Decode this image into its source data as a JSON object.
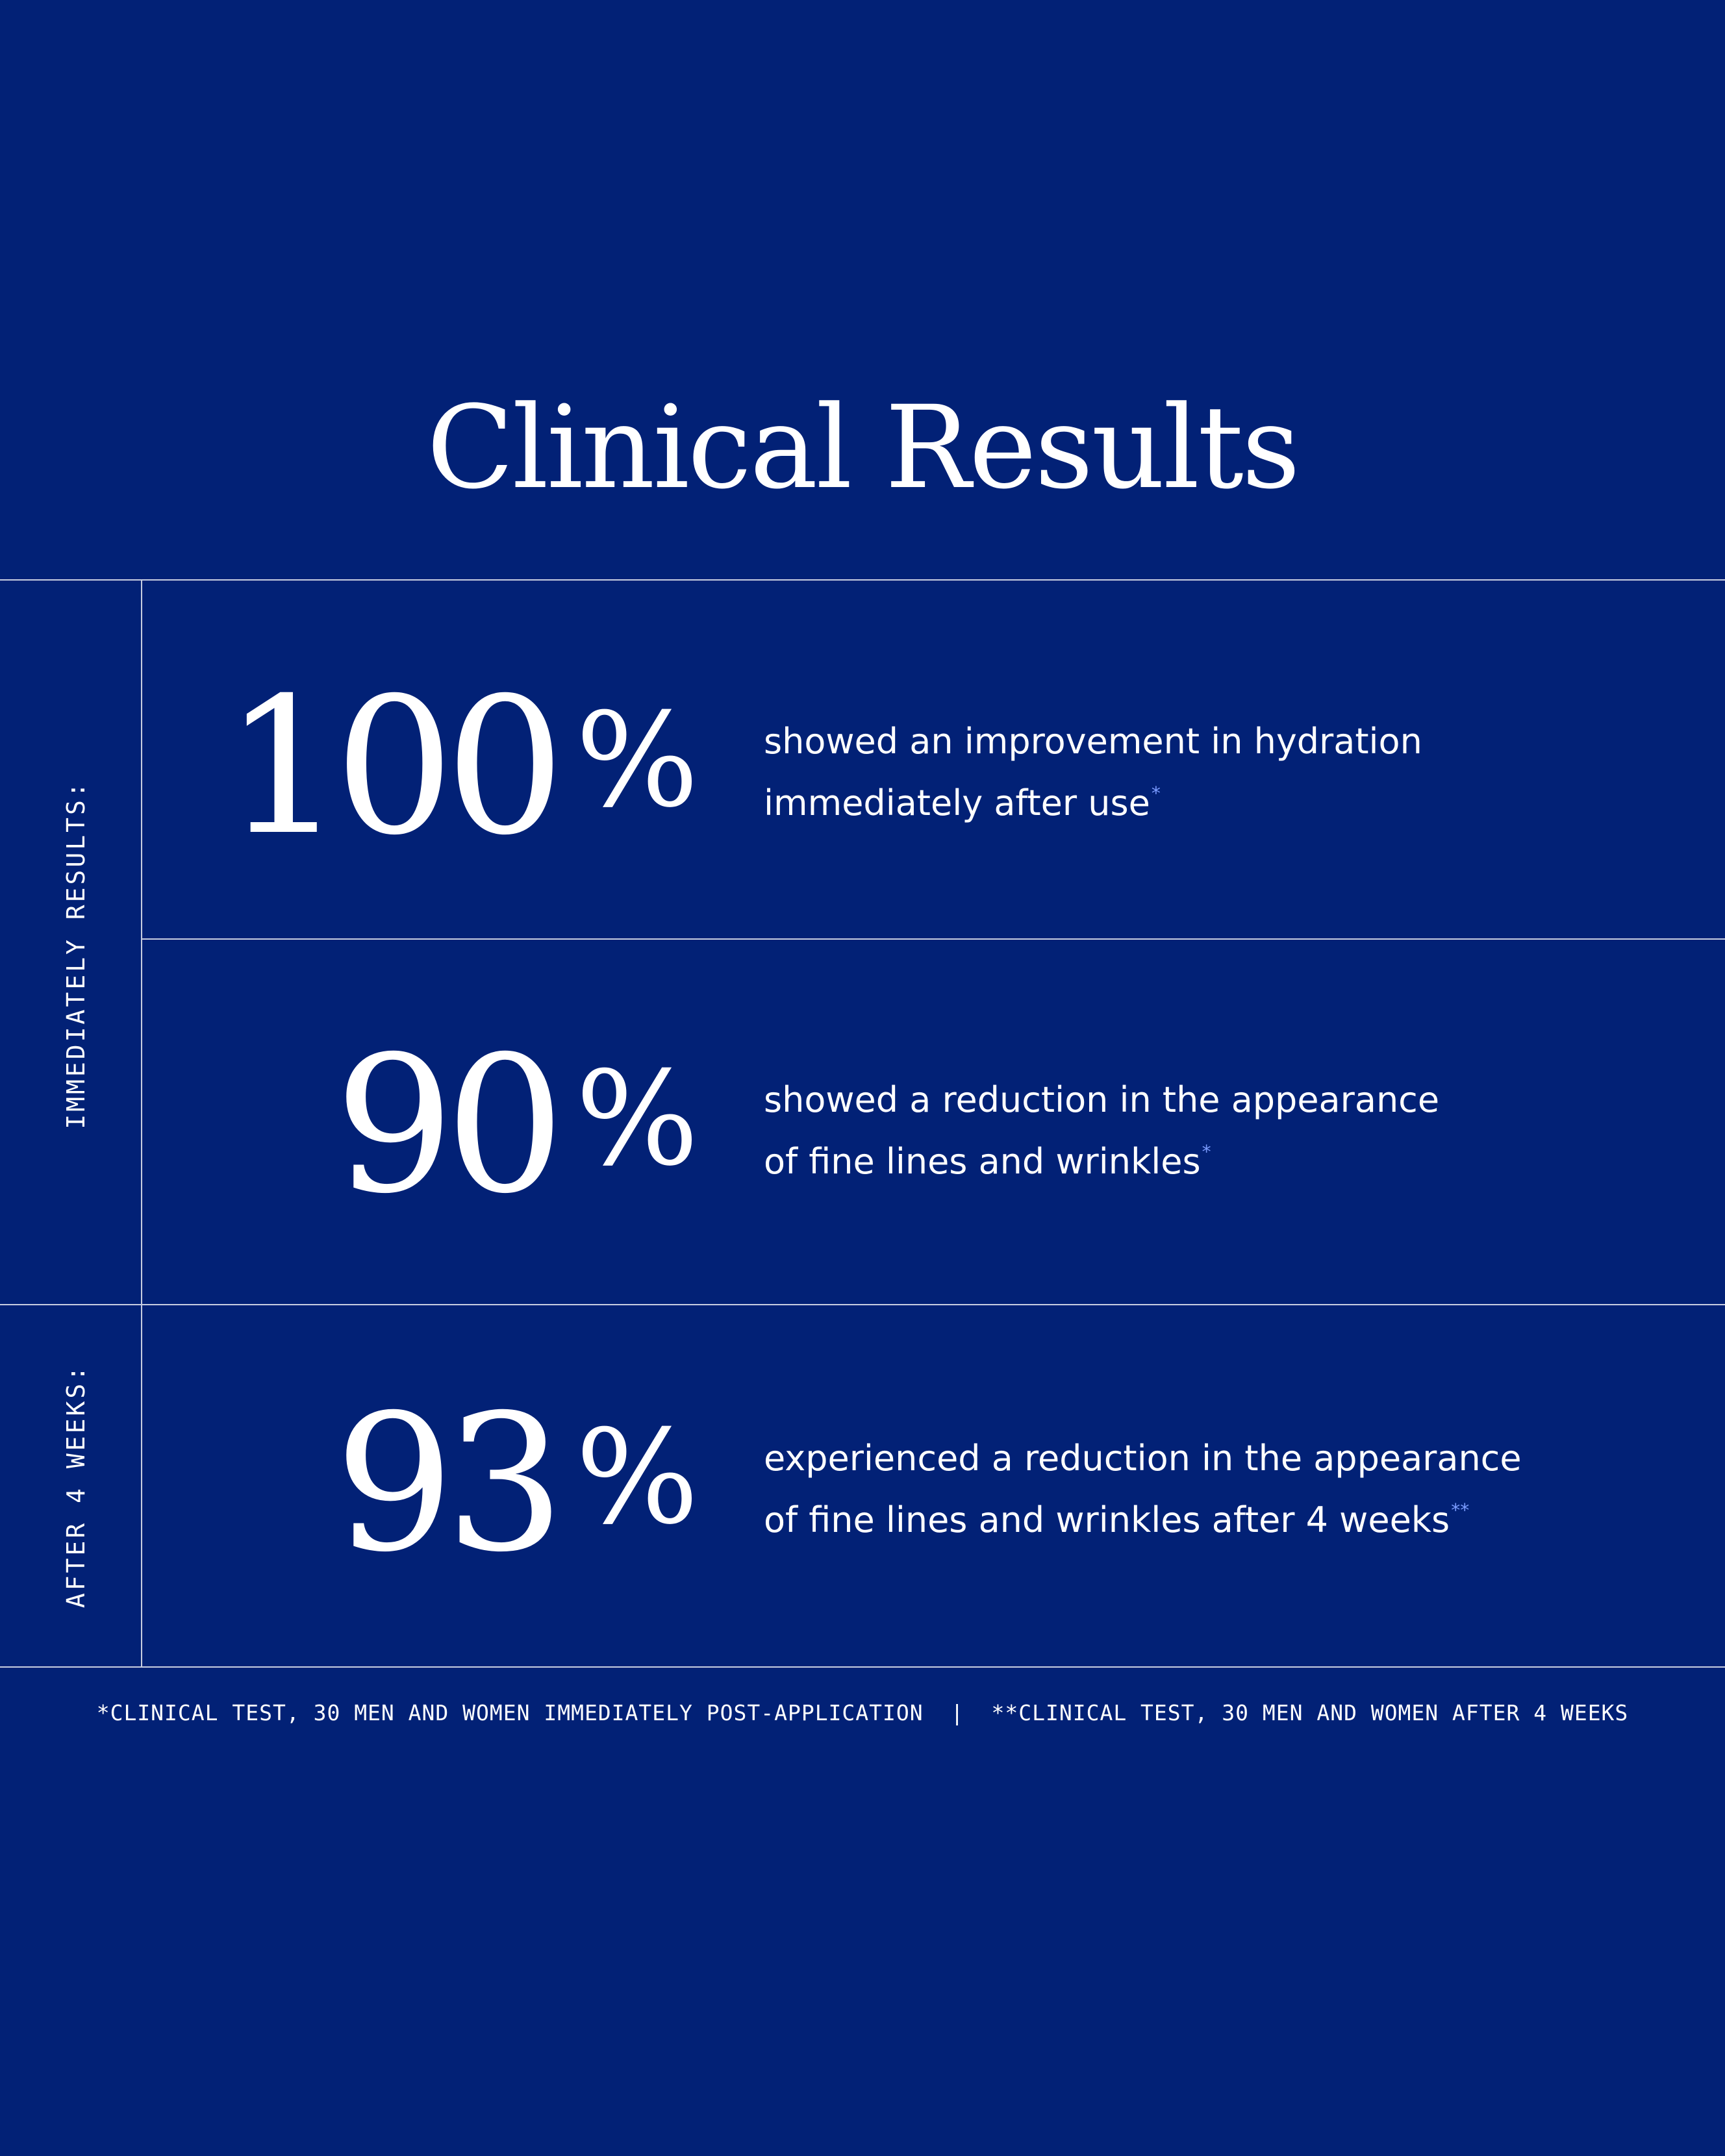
{
  "title": "Clinical Results",
  "side_labels": {
    "immediate": "IMMEDIATELY RESULTS:",
    "after": "AFTER 4 WEEKS:"
  },
  "stats": [
    {
      "number": "100",
      "percent": "%",
      "line1": "showed an improvement in hydration",
      "line2": "immediately after use",
      "mark": "*"
    },
    {
      "number": "90",
      "percent": "%",
      "line1": "showed a reduction in the appearance",
      "line2": "of fine lines and wrinkles",
      "mark": "*"
    },
    {
      "number": "93",
      "percent": "%",
      "line1": "experienced a reduction in the appearance",
      "line2": "of fine lines and wrinkles after 4 weeks",
      "mark": "**"
    }
  ],
  "footer": {
    "note1": "*CLINICAL TEST, 30 MEN AND WOMEN IMMEDIATELY POST-APPLICATION",
    "separator": "|",
    "note2": "**CLINICAL TEST, 30 MEN AND WOMEN AFTER 4 WEEKS"
  },
  "colors": {
    "background": "#022176",
    "text": "#ffffff",
    "rule": "#c8cde0",
    "footnote_mark": "#7b9cff"
  }
}
